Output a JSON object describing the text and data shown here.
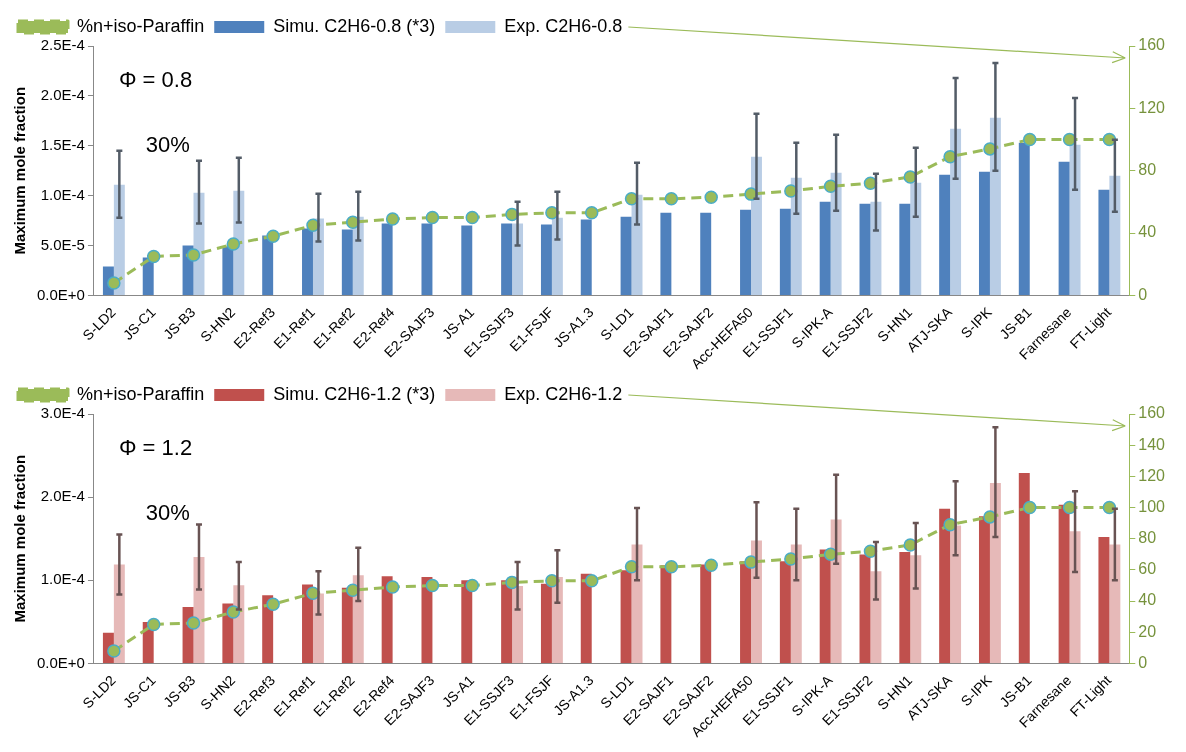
{
  "chart_data": [
    {
      "type": "bar",
      "ylabel": "Maximum mole fraction",
      "legend": "top",
      "annotations": [
        "Φ = 0.8",
        "30%"
      ],
      "categories": [
        "S-LD2",
        "JS-C1",
        "JS-B3",
        "S-HN2",
        "E2-Ref3",
        "E1-Ref1",
        "E1-Ref2",
        "E2-Ref4",
        "E2-SAJF3",
        "JS-A1",
        "E1-SSJF3",
        "E1-FSJF",
        "JS-A1.3",
        "S-LD1",
        "E2-SAJF1",
        "E2-SAJF2",
        "Acc-HEFA50",
        "E1-SSJF1",
        "S-IPK-A",
        "E1-SSJF2",
        "S-HN1",
        "ATJ-SKA",
        "S-IPK",
        "JS-B1",
        "Farnesane",
        "FT-Light"
      ],
      "ylim": [
        0,
        0.00025
      ],
      "yticks": [
        {
          "value": 0,
          "label": "0.0E+0"
        },
        {
          "value": 5e-05,
          "label": "5.0E-5"
        },
        {
          "value": 0.0001,
          "label": "1.0E-4"
        },
        {
          "value": 0.00015,
          "label": "1.5E-4"
        },
        {
          "value": 0.0002,
          "label": "2.0E-4"
        },
        {
          "value": 0.00025,
          "label": "2.5E-4"
        }
      ],
      "y2lim": [
        0,
        160
      ],
      "y2ticks": [
        0,
        40,
        80,
        120,
        160
      ],
      "series": [
        {
          "name": "Simu. C2H6-0.8 (*3)",
          "color": "#4f81bd",
          "values": [
            2.9e-05,
            3.8e-05,
            5e-05,
            4.9e-05,
            6e-05,
            6.7e-05,
            6.6e-05,
            7.2e-05,
            7.2e-05,
            7e-05,
            7.2e-05,
            7.1e-05,
            7.6e-05,
            7.9e-05,
            8.3e-05,
            8.3e-05,
            8.6e-05,
            8.7e-05,
            9.4e-05,
            9.2e-05,
            9.2e-05,
            0.000121,
            0.000124,
            0.000153,
            0.000134,
            0.000106
          ]
        },
        {
          "name": "Exp. C2H6-0.8",
          "color": "#b9cde5",
          "values": [
            0.000111,
            null,
            0.000103,
            0.000105,
            null,
            7.7e-05,
            7.9e-05,
            null,
            null,
            null,
            7.2e-05,
            7.8e-05,
            null,
            0.000101,
            null,
            null,
            0.000139,
            0.000118,
            0.000123,
            9.4e-05,
            0.000113,
            0.000167,
            0.000178,
            null,
            0.000151,
            0.00012
          ],
          "errors": [
            [
              7.8e-05,
              0.000145
            ],
            null,
            [
              7.2e-05,
              0.000135
            ],
            [
              7.3e-05,
              0.000138
            ],
            null,
            [
              5.4e-05,
              0.000102
            ],
            [
              5.5e-05,
              0.000104
            ],
            null,
            null,
            null,
            [
              5e-05,
              9.4e-05
            ],
            [
              5.6e-05,
              0.000104
            ],
            null,
            [
              7.1e-05,
              0.000133
            ],
            null,
            null,
            [
              9.7e-05,
              0.000182
            ],
            [
              8.2e-05,
              0.000153
            ],
            [
              8.5e-05,
              0.000161
            ],
            [
              6.5e-05,
              0.000122
            ],
            [
              7.9e-05,
              0.000148
            ],
            [
              0.000117,
              0.000218
            ],
            [
              0.000125,
              0.000233
            ],
            null,
            [
              0.000106,
              0.000198
            ],
            [
              8.4e-05,
              0.000156
            ]
          ]
        },
        {
          "name": "%n+iso-Paraffin",
          "type": "line",
          "axis": "y2",
          "color": "#9bbb59",
          "marker": "circle",
          "line_style": "dashed",
          "values": [
            8,
            25,
            26,
            33,
            38,
            45,
            47,
            49,
            50,
            50,
            52,
            53,
            53,
            62,
            62,
            63,
            65,
            67,
            70,
            72,
            76,
            89,
            94,
            100,
            100,
            100
          ]
        }
      ]
    },
    {
      "type": "bar",
      "ylabel": "Maximum mole fraction",
      "legend": "top",
      "annotations": [
        "Φ = 1.2",
        "30%"
      ],
      "categories": [
        "S-LD2",
        "JS-C1",
        "JS-B3",
        "S-HN2",
        "E2-Ref3",
        "E1-Ref1",
        "E1-Ref2",
        "E2-Ref4",
        "E2-SAJF3",
        "JS-A1",
        "E1-SSJF3",
        "E1-FSJF",
        "JS-A1.3",
        "S-LD1",
        "E2-SAJF1",
        "E2-SAJF2",
        "Acc-HEFA50",
        "E1-SSJF1",
        "S-IPK-A",
        "E1-SSJF2",
        "S-HN1",
        "ATJ-SKA",
        "S-IPK",
        "JS-B1",
        "Farnesane",
        "FT-Light"
      ],
      "ylim": [
        0,
        0.0003
      ],
      "yticks": [
        {
          "value": 0,
          "label": "0.0E+0"
        },
        {
          "value": 0.0001,
          "label": "1.0E-4"
        },
        {
          "value": 0.0002,
          "label": "2.0E-4"
        },
        {
          "value": 0.0003,
          "label": "3.0E-4"
        }
      ],
      "y2lim": [
        0,
        160
      ],
      "y2ticks": [
        0,
        20,
        40,
        60,
        80,
        100,
        120,
        140,
        160
      ],
      "series": [
        {
          "name": "Simu. C2H6-1.2 (*3)",
          "color": "#c0504d",
          "values": [
            3.7e-05,
            5e-05,
            6.8e-05,
            7.2e-05,
            8.2e-05,
            9.5e-05,
            9.1e-05,
            0.000105,
            0.000104,
            0.0001,
            0.0001,
            9.6e-05,
            0.000108,
            0.000112,
            0.000118,
            0.000119,
            0.000123,
            0.000123,
            0.000137,
            0.000131,
            0.000134,
            0.000186,
            0.000177,
            0.000229,
            0.000191,
            0.000152
          ]
        },
        {
          "name": "Exp. C2H6-1.2",
          "color": "#e6b9b8",
          "values": [
            0.000119,
            null,
            0.000128,
            9.4e-05,
            null,
            8.4e-05,
            0.000106,
            null,
            null,
            null,
            9.3e-05,
            0.000104,
            null,
            0.000143,
            null,
            null,
            0.000148,
            0.000143,
            0.000173,
            0.000111,
            0.00013,
            0.000166,
            0.000217,
            null,
            0.000159,
            0.000143
          ],
          "errors": [
            [
              8.3e-05,
              0.000155
            ],
            null,
            [
              8.9e-05,
              0.000167
            ],
            [
              6.5e-05,
              0.000122
            ],
            null,
            [
              5.9e-05,
              0.000111
            ],
            [
              7.5e-05,
              0.000139
            ],
            null,
            null,
            null,
            [
              6.5e-05,
              0.000122
            ],
            [
              7.3e-05,
              0.000136
            ],
            null,
            [
              0.0001,
              0.000187
            ],
            null,
            null,
            [
              0.000103,
              0.000194
            ],
            [
              0.0001,
              0.000186
            ],
            [
              0.00012,
              0.000227
            ],
            [
              7.7e-05,
              0.000146
            ],
            [
              9e-05,
              0.000169
            ],
            [
              0.00013,
              0.000219
            ],
            [
              0.000152,
              0.000284
            ],
            null,
            [
              0.00011,
              0.000207
            ],
            [
              0.0001,
              0.000186
            ]
          ]
        },
        {
          "name": "%n+iso-Paraffin",
          "type": "line",
          "axis": "y2",
          "color": "#9bbb59",
          "marker": "circle",
          "line_style": "dashed",
          "values": [
            8,
            25,
            26,
            33,
            38,
            45,
            47,
            49,
            50,
            50,
            52,
            53,
            53,
            62,
            62,
            63,
            65,
            67,
            70,
            72,
            76,
            89,
            94,
            100,
            100,
            100
          ]
        }
      ]
    }
  ]
}
